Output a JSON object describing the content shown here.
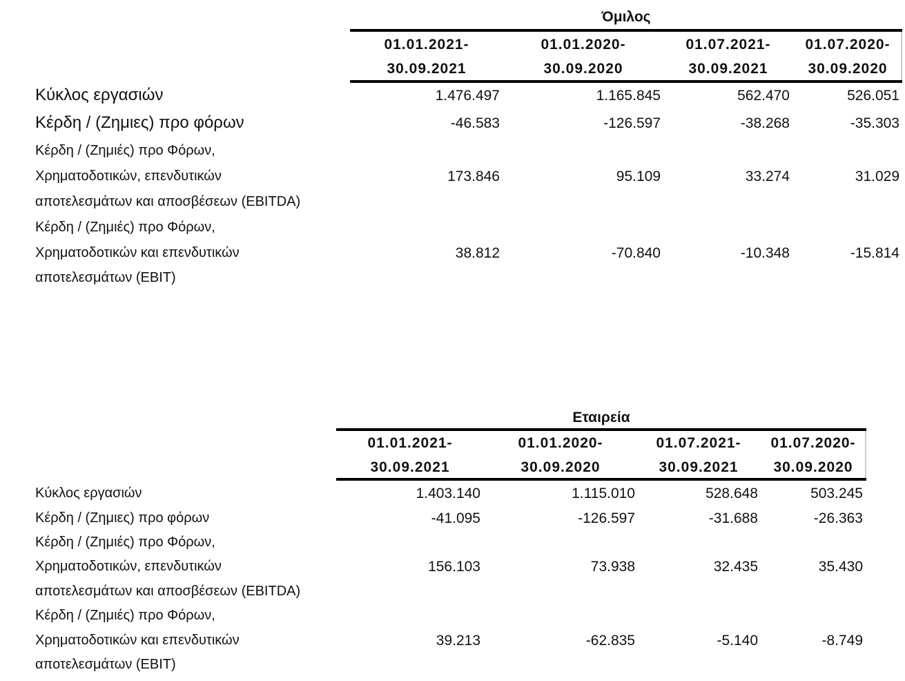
{
  "tables": [
    {
      "title": "Όμιλος",
      "headers": [
        [
          "01.01.2021-",
          "30.09.2021"
        ],
        [
          "01.01.2020-",
          "30.09.2020"
        ],
        [
          "01.07.2021-",
          "30.09.2021"
        ],
        [
          "01.07.2020-",
          "30.09.2020"
        ]
      ],
      "rows": [
        {
          "label": [
            "Κύκλος εργασιών"
          ],
          "values": [
            "1.476.497",
            "1.165.845",
            "562.470",
            "526.051"
          ]
        },
        {
          "label": [
            "Κέρδη / (Ζημιες) προ φόρων"
          ],
          "values": [
            "-46.583",
            "-126.597",
            "-38.268",
            "-35.303"
          ]
        },
        {
          "label": [
            "Κέρδη / (Ζημιές)  προ Φόρων,",
            "Χρηματοδοτικών, επενδυτικών",
            "αποτελεσμάτων και αποσβέσεων (EBITDA)"
          ],
          "values": [
            "173.846",
            "95.109",
            "33.274",
            "31.029"
          ]
        },
        {
          "label": [
            "Κέρδη / (Ζημιές)  προ Φόρων,",
            "Χρηματοδοτικών και επενδυτικών",
            "αποτελεσμάτων (EBIT)"
          ],
          "values": [
            "38.812",
            "-70.840",
            "-10.348",
            "-15.814"
          ]
        }
      ]
    },
    {
      "title": "Εταιρεία",
      "headers": [
        [
          "01.01.2021-",
          "30.09.2021"
        ],
        [
          "01.01.2020-",
          "30.09.2020"
        ],
        [
          "01.07.2021-",
          "30.09.2021"
        ],
        [
          "01.07.2020-",
          "30.09.2020"
        ]
      ],
      "rows": [
        {
          "label": [
            "Κύκλος εργασιών"
          ],
          "values": [
            "1.403.140",
            "1.115.010",
            "528.648",
            "503.245"
          ]
        },
        {
          "label": [
            "Κέρδη / (Ζημιες) προ φόρων"
          ],
          "values": [
            "-41.095",
            "-126.597",
            "-31.688",
            "-26.363"
          ]
        },
        {
          "label": [
            "Κέρδη / (Ζημιές)  προ Φόρων,",
            "Χρηματοδοτικών, επενδυτικών",
            "αποτελεσμάτων και αποσβέσεων (EBITDA)"
          ],
          "values": [
            "156.103",
            "73.938",
            "32.435",
            "35.430"
          ]
        },
        {
          "label": [
            "Κέρδη / (Ζημιές)  προ Φόρων,",
            "Χρηματοδοτικών και επενδυτικών",
            "αποτελεσμάτων (EBIT)"
          ],
          "values": [
            "39.213",
            "-62.835",
            "-5.140",
            "-8.749"
          ]
        }
      ]
    }
  ]
}
